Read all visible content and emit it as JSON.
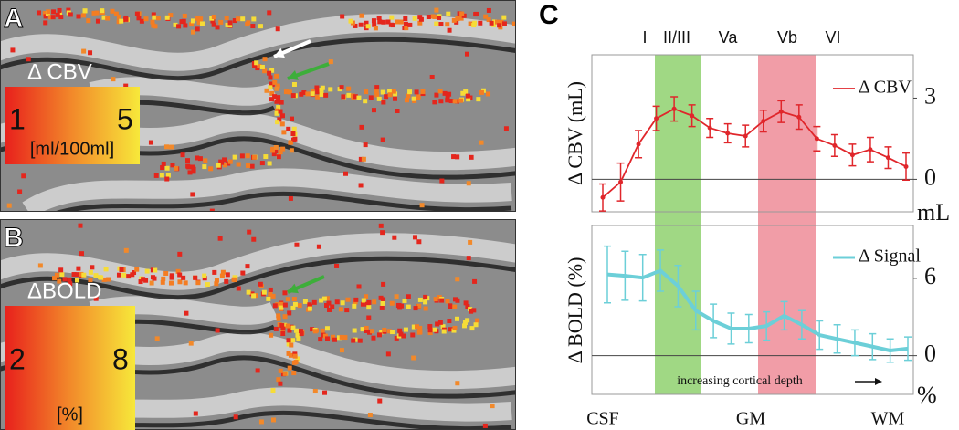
{
  "panel_a": {
    "label": "A",
    "title": "Δ CBV",
    "colorbar_min": 1,
    "colorbar_max": 5,
    "unit": "[ml/100ml]"
  },
  "panel_b": {
    "label": "B",
    "title": "ΔBOLD",
    "colorbar_min": 2,
    "colorbar_max": 8,
    "unit": "[%]"
  },
  "panel_c": {
    "label": "C",
    "layers": [
      {
        "label": "I"
      },
      {
        "label": "II/III",
        "color": "#8fd16f"
      },
      {
        "label": "Va"
      },
      {
        "label": "Vb",
        "color": "#ee8c98"
      },
      {
        "label": "VI"
      }
    ],
    "x_labels": [
      "CSF",
      "GM",
      "WM"
    ],
    "annotation": "increasing cortical depth"
  },
  "chart_data": [
    {
      "type": "line",
      "ylabel": "Δ CBV (mL)",
      "unit": "mL",
      "ylim": [
        -1.2,
        4.6
      ],
      "yticks": [
        0,
        3
      ],
      "markers": true,
      "series": [
        {
          "name": "Δ CBV",
          "color": "#e0262b",
          "values": [
            -0.67,
            -0.1,
            1.3,
            2.25,
            2.6,
            2.35,
            1.9,
            1.7,
            1.6,
            2.15,
            2.5,
            2.3,
            1.5,
            1.25,
            0.9,
            1.1,
            0.8,
            0.47
          ],
          "errors": [
            0.5,
            0.7,
            0.5,
            0.45,
            0.45,
            0.4,
            0.35,
            0.35,
            0.4,
            0.4,
            0.4,
            0.45,
            0.45,
            0.4,
            0.4,
            0.45,
            0.4,
            0.5
          ]
        }
      ]
    },
    {
      "type": "line",
      "ylabel": "Δ BOLD (%)",
      "unit": "%",
      "ylim": [
        -3.0,
        10.1
      ],
      "yticks": [
        0,
        6
      ],
      "markers": false,
      "series": [
        {
          "name": "Δ Signal",
          "color": "#6ccfd8",
          "values": [
            6.3,
            6.2,
            6.05,
            6.6,
            5.4,
            3.5,
            2.7,
            2.1,
            2.1,
            2.3,
            3.1,
            2.4,
            1.6,
            1.3,
            1.0,
            0.7,
            0.4,
            0.55
          ],
          "errors": [
            2.2,
            1.9,
            1.8,
            1.6,
            1.6,
            1.5,
            1.3,
            1.2,
            1.1,
            1.1,
            1.1,
            1.1,
            1.1,
            1.1,
            1.0,
            1.0,
            0.9,
            0.9
          ]
        }
      ]
    }
  ]
}
